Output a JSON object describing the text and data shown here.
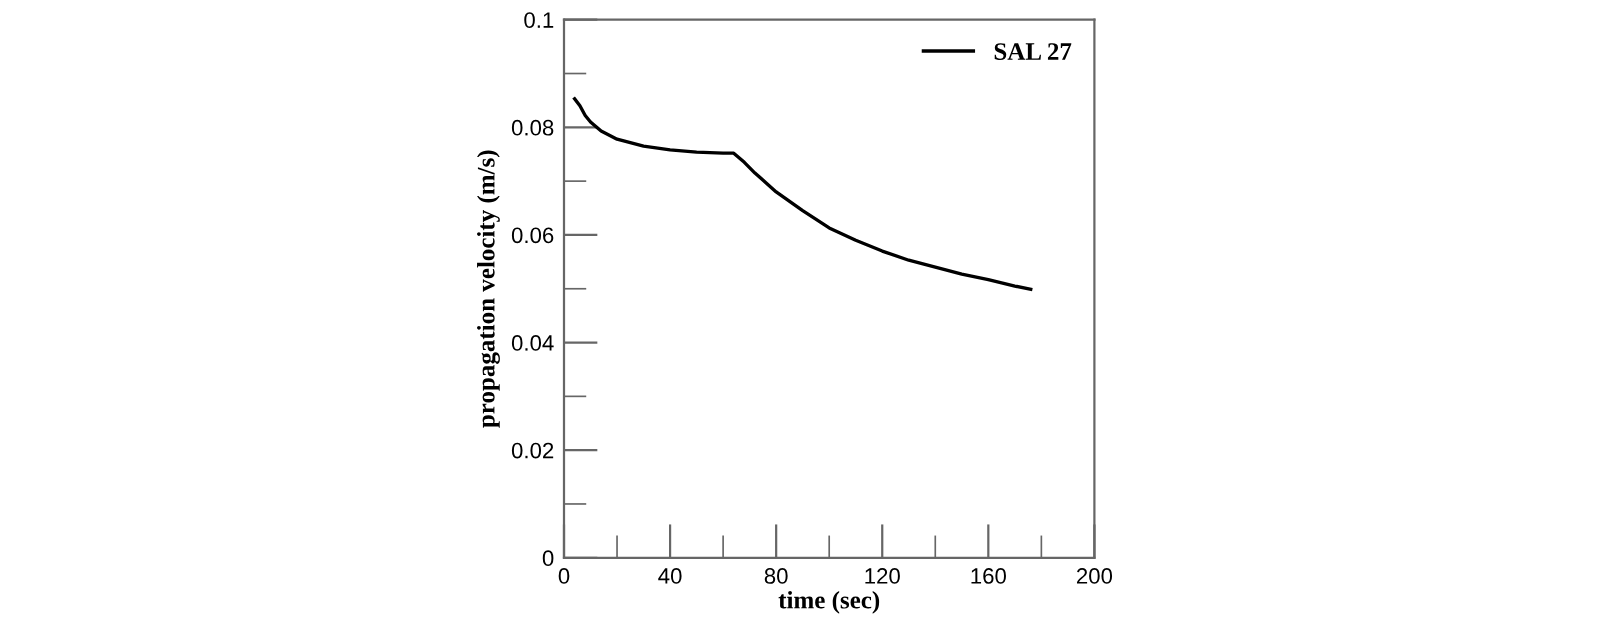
{
  "chart_data": {
    "type": "line",
    "xlabel": "time (sec)",
    "ylabel": "propagation velocity (m/s)",
    "xlim": [
      0,
      200
    ],
    "ylim": [
      0,
      0.1
    ],
    "xticks": [
      0,
      40,
      80,
      120,
      160,
      200
    ],
    "yticks": [
      0,
      0.02,
      0.04,
      0.06,
      0.08,
      0.1
    ],
    "legend": "top right",
    "grid": false,
    "series": [
      {
        "name": "SAL 27",
        "color": "#000000",
        "x": [
          4,
          6,
          8,
          10,
          14,
          20,
          30,
          40,
          50,
          60,
          64,
          68,
          72,
          80,
          90,
          100,
          110,
          120,
          130,
          140,
          150,
          160,
          170,
          176
        ],
        "values": [
          0.0853,
          0.084,
          0.0822,
          0.081,
          0.0793,
          0.0778,
          0.0765,
          0.0758,
          0.0754,
          0.0752,
          0.0752,
          0.0735,
          0.0715,
          0.068,
          0.0645,
          0.0613,
          0.059,
          0.057,
          0.0553,
          0.054,
          0.0527,
          0.0517,
          0.0505,
          0.0499
        ]
      }
    ]
  }
}
